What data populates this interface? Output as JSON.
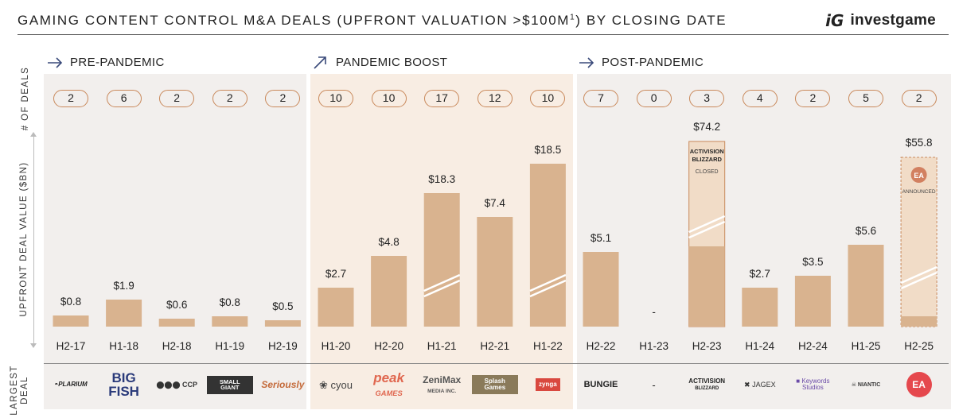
{
  "header": {
    "title_main": "GAMING CONTENT CONTROL M&A DEALS (UPFRONT VALUATION >$100M",
    "title_sup": "1",
    "title_end": ") BY CLOSING DATE",
    "brand_mark": "iG",
    "brand_name": "investgame"
  },
  "eras": {
    "pre": "PRE-PANDEMIC",
    "boost": "PANDEMIC BOOST",
    "post": "POST-PANDEMIC"
  },
  "axes": {
    "deals_label": "# OF DEALS",
    "value_label": "UPFRONT DEAL VALUE ($BN)",
    "largest_label_1": "LARGEST",
    "largest_label_2": "DEAL"
  },
  "colors": {
    "bar": "#d9b38f",
    "bar_ghost": "#f1dcc7",
    "pill_border": "#c9895b",
    "panel_grey": "#f2efed",
    "panel_peach": "#f8ede3"
  },
  "chart_data": {
    "type": "bar",
    "categories": [
      "H2-17",
      "H1-18",
      "H2-18",
      "H1-19",
      "H2-19",
      "H1-20",
      "H2-20",
      "H1-21",
      "H2-21",
      "H1-22",
      "H2-22",
      "H1-23",
      "H2-23",
      "H1-24",
      "H2-24",
      "H1-25",
      "H2-25"
    ],
    "values": [
      0.8,
      1.9,
      0.6,
      0.8,
      0.5,
      2.7,
      4.8,
      18.3,
      7.4,
      18.5,
      5.1,
      0,
      74.2,
      2.7,
      3.5,
      5.6,
      55.8
    ],
    "value_labels": [
      "$0.8",
      "$1.9",
      "$0.6",
      "$0.8",
      "$0.5",
      "$2.7",
      "$4.8",
      "$18.3",
      "$7.4",
      "$18.5",
      "$5.1",
      "-",
      "$74.2",
      "$2.7",
      "$3.5",
      "$5.6",
      "$55.8"
    ],
    "deal_counts": [
      2,
      6,
      2,
      2,
      2,
      10,
      10,
      17,
      12,
      10,
      7,
      0,
      3,
      4,
      2,
      5,
      2
    ],
    "axis_breaks": [
      "H1-21",
      "H1-22",
      "H2-23",
      "H2-25"
    ],
    "annotations": [
      {
        "category": "H2-23",
        "logo_text_1": "ACTIVISION",
        "logo_text_2": "BLIZZARD",
        "status": "CLOSED"
      },
      {
        "category": "H2-25",
        "logo_text": "EA",
        "status": "ANNOUNCED"
      }
    ],
    "grid": false,
    "legend": "none"
  },
  "largest_deals": [
    {
      "category": "H2-17",
      "name": "PLARIUM",
      "icon": "plarium-logo"
    },
    {
      "category": "H1-18",
      "name": "BIG FISH",
      "icon": "bigfish-logo"
    },
    {
      "category": "H2-18",
      "name": "CCP",
      "icon": "ccp-logo"
    },
    {
      "category": "H1-19",
      "name": "SMALL GIANT",
      "icon": "smallgiant-logo"
    },
    {
      "category": "H2-19",
      "name": "Seriously",
      "icon": "seriously-logo"
    },
    {
      "category": "H1-20",
      "name": "cyou",
      "icon": "cyou-logo"
    },
    {
      "category": "H2-20",
      "name": "peak",
      "sub": "GAMES",
      "icon": "peak-logo"
    },
    {
      "category": "H1-21",
      "name": "ZeniMax",
      "sub": "MEDIA INC.",
      "icon": "zenimax-logo"
    },
    {
      "category": "H2-21",
      "name": "Splash Games",
      "icon": "splashgames-logo"
    },
    {
      "category": "H1-22",
      "name": "zynga",
      "icon": "zynga-logo"
    },
    {
      "category": "H2-22",
      "name": "BUNGIE",
      "icon": "bungie-logo"
    },
    {
      "category": "H1-23",
      "name": "-",
      "icon": "none"
    },
    {
      "category": "H2-23",
      "name": "ACTIVISION",
      "sub": "BLIZZARD",
      "icon": "activision-logo"
    },
    {
      "category": "H1-24",
      "name": "JAGEX",
      "icon": "jagex-logo"
    },
    {
      "category": "H2-24",
      "name": "Keywords Studios",
      "icon": "keywords-logo"
    },
    {
      "category": "H1-25",
      "name": "NIANTIC",
      "icon": "niantic-logo"
    },
    {
      "category": "H2-25",
      "name": "EA",
      "icon": "ea-logo"
    }
  ]
}
